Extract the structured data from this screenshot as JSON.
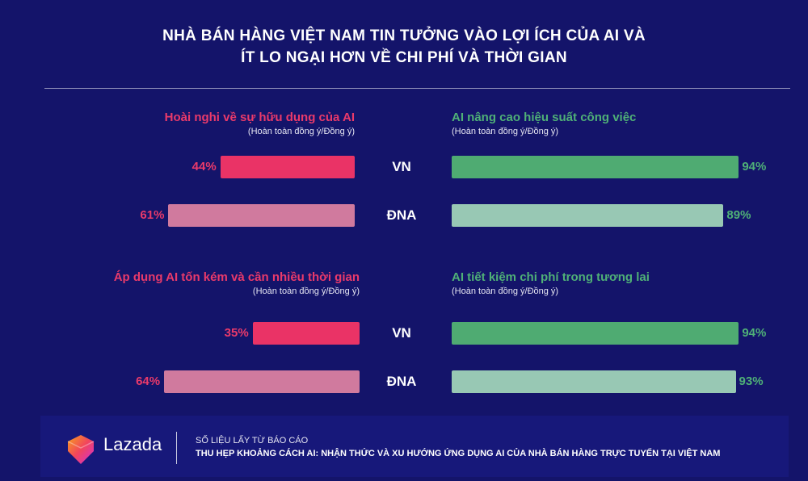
{
  "title_lines": [
    "NHÀ BÁN HÀNG VIỆT NAM TIN TƯỞNG VÀO LỢI ÍCH CỦA AI VÀ",
    "ÍT LO NGẠI HƠN VỀ CHI PHÍ VÀ THỜI GIAN"
  ],
  "colors": {
    "background": "#14146a",
    "pink_vn": "#ea3366",
    "pink_dna": "#d07a9e",
    "green_vn": "#4fab72",
    "green_dna": "#98c8b4",
    "pink_text": "#ea3a6a",
    "green_text": "#4fb077"
  },
  "chart_data": {
    "type": "bar",
    "categories": [
      "VN",
      "ĐNA"
    ],
    "panels": [
      {
        "title": "Hoài nghi về sự hữu dụng của AI",
        "subtitle": "(Hoàn toàn đồng ý/Đồng ý)",
        "side": "left",
        "values": [
          44,
          61
        ],
        "labels": [
          "44%",
          "61%"
        ]
      },
      {
        "title": "AI nâng cao hiệu suất công việc",
        "subtitle": "(Hoàn toàn đồng ý/Đồng ý)",
        "side": "right",
        "values": [
          94,
          89
        ],
        "labels": [
          "94%",
          "89%"
        ]
      },
      {
        "title": "Áp dụng AI tốn kém và cần nhiều thời gian",
        "subtitle": "(Hoàn toàn đồng ý/Đồng ý)",
        "side": "left",
        "values": [
          35,
          64
        ],
        "labels": [
          "35%",
          "64%"
        ]
      },
      {
        "title": "AI tiết kiệm chi phí trong tương lai",
        "subtitle": "(Hoàn toàn đồng ý/Đồng ý)",
        "side": "right",
        "values": [
          94,
          93
        ],
        "labels": [
          "94%",
          "93%"
        ]
      }
    ]
  },
  "footer": {
    "brand": "Lazada",
    "source_line1": "SỐ LIỆU LẤY TỪ BÁO CÁO",
    "source_line2": "THU HẸP KHOẢNG CÁCH AI: NHẬN THỨC VÀ XU HƯỚNG ỨNG DỤNG AI CỦA NHÀ BÁN HÀNG TRỰC TUYẾN TẠI VIỆT NAM"
  }
}
